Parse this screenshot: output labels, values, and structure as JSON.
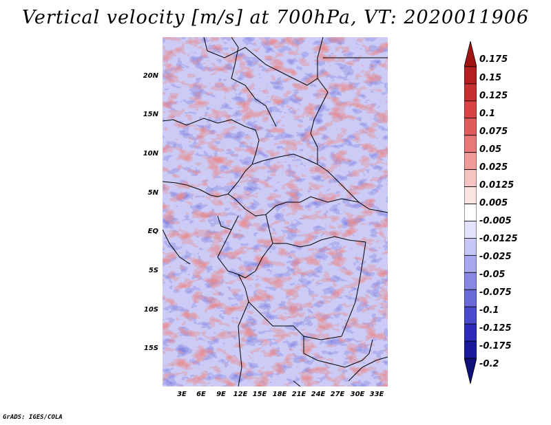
{
  "title": "Vertical velocity [m/s] at 700hPa, VT: 2020011906",
  "credit": "GrADS: IGES/COLA",
  "map": {
    "lat_labels": [
      "20N",
      "15N",
      "10N",
      "5N",
      "EQ",
      "5S",
      "10S",
      "15S"
    ],
    "lon_labels": [
      "3E",
      "6E",
      "9E",
      "12E",
      "15E",
      "18E",
      "21E",
      "24E",
      "27E",
      "30E",
      "33E"
    ],
    "description_field": "vertical velocity"
  },
  "colorbar": {
    "labels": [
      "0.175",
      "0.15",
      "0.125",
      "0.1",
      "0.075",
      "0.05",
      "0.025",
      "0.0125",
      "0.005",
      "-0.005",
      "-0.0125",
      "-0.025",
      "-0.05",
      "-0.075",
      "-0.1",
      "-0.125",
      "-0.175",
      "-0.2"
    ],
    "colors": [
      "#a01414",
      "#b42020",
      "#c83030",
      "#d84444",
      "#e05c5c",
      "#e87878",
      "#f09a9a",
      "#f7c4c4",
      "#fbe4e4",
      "#ffffff",
      "#e2e2fb",
      "#c6c6f7",
      "#a8a8ef",
      "#8888e4",
      "#6a6ad8",
      "#4a4acc",
      "#2c2cb8",
      "#1a1a9a",
      "#10107a"
    ]
  }
}
